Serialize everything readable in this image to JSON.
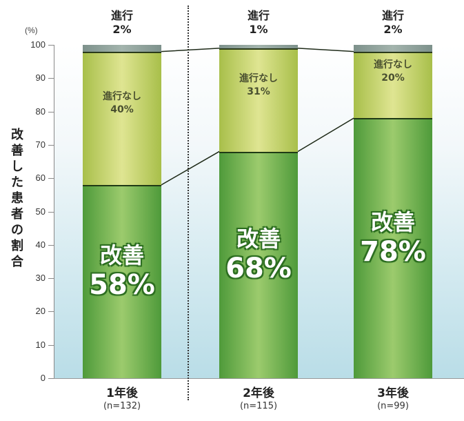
{
  "chart_data": {
    "type": "bar",
    "stacked": true,
    "title": "",
    "xlabel": "",
    "ylabel": "改善した患者の割合",
    "y_unit": "(%)",
    "ylim": [
      0,
      100
    ],
    "yticks": [
      0,
      10,
      20,
      30,
      40,
      50,
      60,
      70,
      80,
      90,
      100
    ],
    "categories": [
      "1年後",
      "2年後",
      "3年後"
    ],
    "sample_sizes": [
      "(n=132)",
      "(n=115)",
      "(n=99)"
    ],
    "series": [
      {
        "name": "改善",
        "values": [
          58,
          68,
          78
        ],
        "color": "#5fa343"
      },
      {
        "name": "進行なし",
        "values": [
          40,
          31,
          20
        ],
        "color": "#c9d86a"
      },
      {
        "name": "進行",
        "values": [
          2,
          1,
          2
        ],
        "color": "#8fa39c"
      }
    ],
    "legend_position": "none",
    "grid": false
  },
  "axis": {
    "unit": "(%)",
    "label": "改善した患者の割合",
    "ticks": [
      "0",
      "10",
      "20",
      "30",
      "40",
      "50",
      "60",
      "70",
      "80",
      "90",
      "100"
    ]
  },
  "bars": [
    {
      "category": "1年後",
      "n": "(n=132)",
      "improved_label": "改善",
      "improved_value": "58%",
      "none_label": "進行なし",
      "none_value": "40%",
      "prog_label": "進行",
      "prog_value": "2%"
    },
    {
      "category": "2年後",
      "n": "(n=115)",
      "improved_label": "改善",
      "improved_value": "68%",
      "none_label": "進行なし",
      "none_value": "31%",
      "prog_label": "進行",
      "prog_value": "1%"
    },
    {
      "category": "3年後",
      "n": "(n=99)",
      "improved_label": "改善",
      "improved_value": "78%",
      "none_label": "進行なし",
      "none_value": "20%",
      "prog_label": "進行",
      "prog_value": "2%"
    }
  ]
}
